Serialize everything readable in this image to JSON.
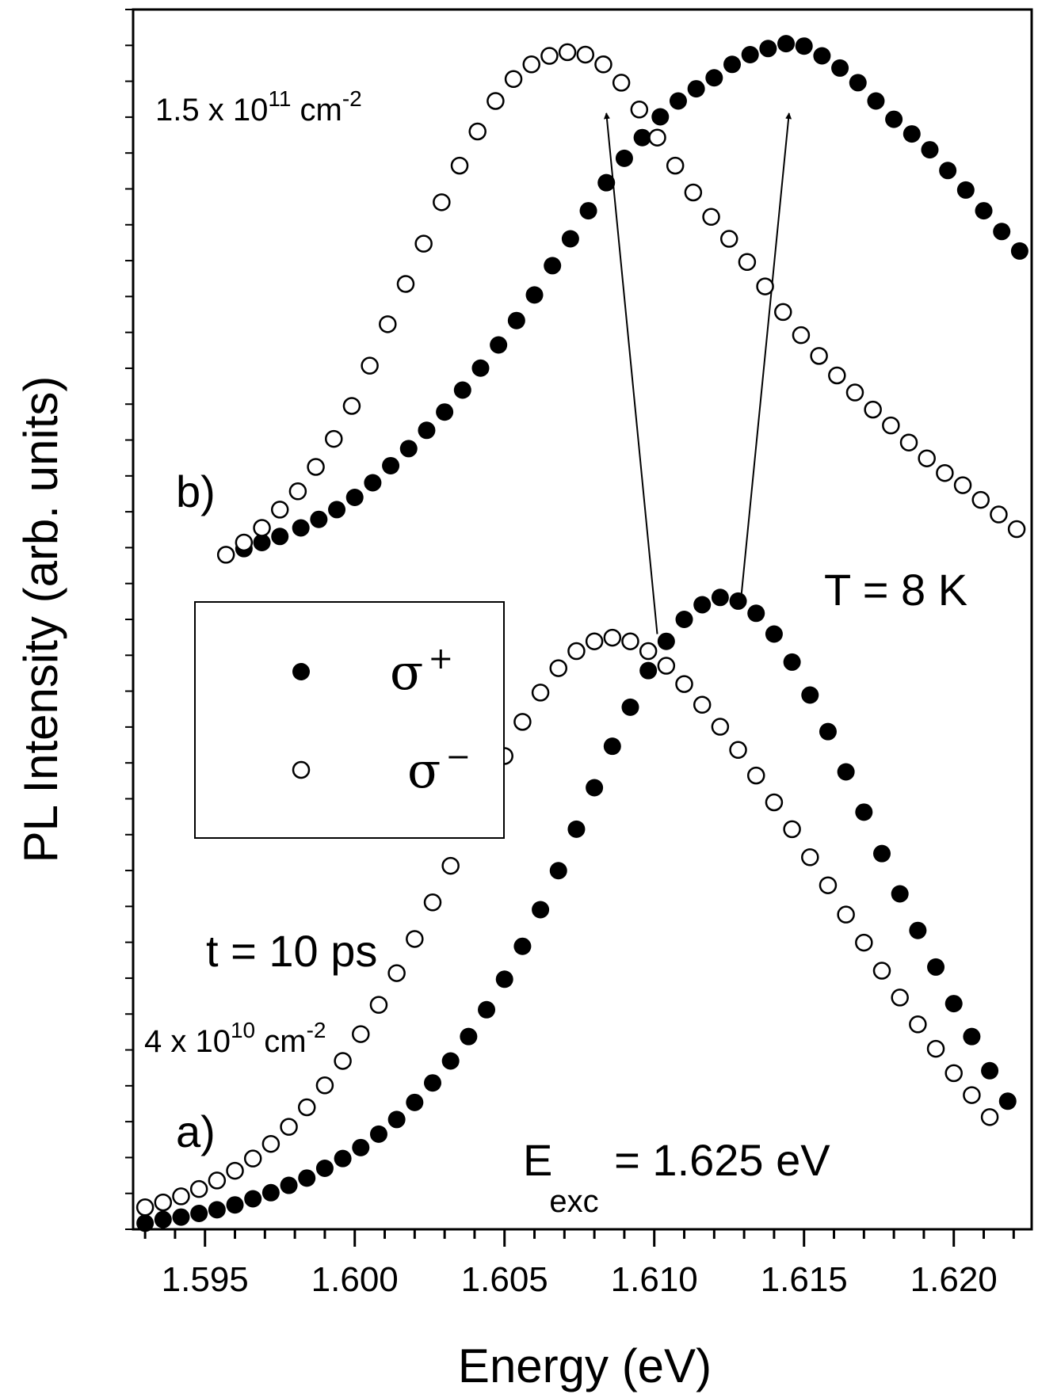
{
  "chart_data": {
    "type": "scatter",
    "xlabel": "Energy (eV)",
    "ylabel": "PL Intensity (arb. units)",
    "xlim": [
      1.5926,
      1.6226
    ],
    "ylim": [
      0,
      1
    ],
    "x_ticks": [
      1.595,
      1.6,
      1.605,
      1.61,
      1.615,
      1.62
    ],
    "x_tick_labels": [
      "1.595",
      "1.600",
      "1.605",
      "1.610",
      "1.615",
      "1.620"
    ],
    "legend": {
      "placement": "center-left",
      "entries": [
        {
          "symbol": "σ",
          "sup": "+",
          "marker": "filled"
        },
        {
          "symbol": "σ",
          "sup": "−",
          "marker": "open"
        }
      ]
    },
    "annotations": {
      "temperature": "T = 8 K",
      "time": "t = 10 ps",
      "label_b": "b)",
      "label_a": "a)",
      "density_b": {
        "base": "1.5 x 10",
        "exp": "11",
        "unit": " cm",
        "unit_exp": "-2"
      },
      "density_a": {
        "base": "4 x 10",
        "exp": "10",
        "unit": " cm",
        "unit_exp": "-2"
      },
      "excitation": {
        "base": "E",
        "sub": "exc",
        "rest": " = 1.625 eV"
      }
    },
    "arrows": [
      {
        "from": [
          1.6101,
          0.488
        ],
        "to": [
          1.6084,
          0.915
        ]
      },
      {
        "from": [
          1.6129,
          0.518
        ],
        "to": [
          1.6145,
          0.915
        ]
      }
    ],
    "series": [
      {
        "name": "σ+",
        "group": "b) 1.5 x 10^11 cm^-2",
        "marker": "filled",
        "x": [
          1.5957,
          1.5963,
          1.5969,
          1.5975,
          1.5982,
          1.5988,
          1.5994,
          1.6,
          1.6006,
          1.6012,
          1.6018,
          1.6024,
          1.603,
          1.6036,
          1.6042,
          1.6048,
          1.6054,
          1.606,
          1.6066,
          1.6072,
          1.6078,
          1.6084,
          1.609,
          1.6096,
          1.6102,
          1.6108,
          1.6114,
          1.612,
          1.6126,
          1.6132,
          1.6138,
          1.6144,
          1.615,
          1.6156,
          1.6162,
          1.6168,
          1.6174,
          1.618,
          1.6186,
          1.6192,
          1.6198,
          1.6204,
          1.621,
          1.6216,
          1.6222
        ],
        "y": [
          0.553,
          0.558,
          0.563,
          0.568,
          0.575,
          0.582,
          0.59,
          0.6,
          0.612,
          0.626,
          0.64,
          0.655,
          0.67,
          0.688,
          0.706,
          0.725,
          0.745,
          0.766,
          0.79,
          0.812,
          0.835,
          0.858,
          0.878,
          0.895,
          0.912,
          0.925,
          0.935,
          0.944,
          0.955,
          0.963,
          0.968,
          0.972,
          0.97,
          0.962,
          0.952,
          0.94,
          0.925,
          0.91,
          0.898,
          0.885,
          0.868,
          0.852,
          0.835,
          0.818,
          0.802
        ]
      },
      {
        "name": "σ−",
        "group": "b) 1.5 x 10^11 cm^-2",
        "marker": "open",
        "x": [
          1.5957,
          1.5963,
          1.5969,
          1.5975,
          1.5981,
          1.5987,
          1.5993,
          1.5999,
          1.6005,
          1.6011,
          1.6017,
          1.6023,
          1.6029,
          1.6035,
          1.6041,
          1.6047,
          1.6053,
          1.6059,
          1.6065,
          1.6071,
          1.6077,
          1.6083,
          1.6089,
          1.6095,
          1.6101,
          1.6107,
          1.6113,
          1.6119,
          1.6125,
          1.6131,
          1.6137,
          1.6143,
          1.6149,
          1.6155,
          1.6161,
          1.6167,
          1.6173,
          1.6179,
          1.6185,
          1.6191,
          1.6197,
          1.6203,
          1.6209,
          1.6215,
          1.6221
        ],
        "y": [
          0.553,
          0.563,
          0.575,
          0.59,
          0.605,
          0.625,
          0.648,
          0.675,
          0.708,
          0.742,
          0.775,
          0.808,
          0.842,
          0.872,
          0.9,
          0.925,
          0.943,
          0.955,
          0.962,
          0.965,
          0.963,
          0.955,
          0.94,
          0.918,
          0.895,
          0.872,
          0.85,
          0.83,
          0.812,
          0.793,
          0.773,
          0.752,
          0.733,
          0.716,
          0.7,
          0.686,
          0.672,
          0.659,
          0.645,
          0.632,
          0.62,
          0.61,
          0.598,
          0.586,
          0.574
        ]
      },
      {
        "name": "σ+",
        "group": "a) 4 x 10^10 cm^-2",
        "marker": "filled",
        "x": [
          1.593,
          1.5936,
          1.5942,
          1.5948,
          1.5954,
          1.596,
          1.5966,
          1.5972,
          1.5978,
          1.5984,
          1.599,
          1.5996,
          1.6002,
          1.6008,
          1.6014,
          1.602,
          1.6026,
          1.6032,
          1.6038,
          1.6044,
          1.605,
          1.6056,
          1.6062,
          1.6068,
          1.6074,
          1.608,
          1.6086,
          1.6092,
          1.6098,
          1.6104,
          1.611,
          1.6116,
          1.6122,
          1.6128,
          1.6134,
          1.614,
          1.6146,
          1.6152,
          1.6158,
          1.6164,
          1.617,
          1.6176,
          1.6182,
          1.6188,
          1.6194,
          1.62,
          1.6206,
          1.6212,
          1.6218
        ],
        "y": [
          0.005,
          0.008,
          0.01,
          0.013,
          0.016,
          0.02,
          0.025,
          0.03,
          0.036,
          0.042,
          0.05,
          0.058,
          0.067,
          0.078,
          0.09,
          0.104,
          0.12,
          0.138,
          0.158,
          0.18,
          0.205,
          0.232,
          0.262,
          0.294,
          0.328,
          0.362,
          0.396,
          0.428,
          0.458,
          0.482,
          0.5,
          0.512,
          0.518,
          0.515,
          0.505,
          0.488,
          0.465,
          0.438,
          0.408,
          0.375,
          0.342,
          0.308,
          0.275,
          0.245,
          0.215,
          0.185,
          0.158,
          0.13,
          0.105
        ]
      },
      {
        "name": "σ−",
        "group": "a) 4 x 10^10 cm^-2",
        "marker": "open",
        "x": [
          1.593,
          1.5936,
          1.5942,
          1.5948,
          1.5954,
          1.596,
          1.5966,
          1.5972,
          1.5978,
          1.5984,
          1.599,
          1.5996,
          1.6002,
          1.6008,
          1.6014,
          1.602,
          1.6026,
          1.6032,
          1.6038,
          1.6044,
          1.605,
          1.6056,
          1.6062,
          1.6068,
          1.6074,
          1.608,
          1.6086,
          1.6092,
          1.6098,
          1.6104,
          1.611,
          1.6116,
          1.6122,
          1.6128,
          1.6134,
          1.614,
          1.6146,
          1.6152,
          1.6158,
          1.6164,
          1.617,
          1.6176,
          1.6182,
          1.6188,
          1.6194,
          1.62,
          1.6206,
          1.6212
        ],
        "y": [
          0.018,
          0.022,
          0.027,
          0.033,
          0.04,
          0.048,
          0.058,
          0.07,
          0.084,
          0.1,
          0.118,
          0.138,
          0.16,
          0.184,
          0.21,
          0.238,
          0.268,
          0.298,
          0.328,
          0.358,
          0.388,
          0.416,
          0.44,
          0.46,
          0.474,
          0.482,
          0.485,
          0.482,
          0.474,
          0.462,
          0.447,
          0.43,
          0.412,
          0.393,
          0.372,
          0.35,
          0.328,
          0.305,
          0.282,
          0.258,
          0.235,
          0.212,
          0.19,
          0.168,
          0.148,
          0.128,
          0.11,
          0.092
        ]
      }
    ]
  }
}
